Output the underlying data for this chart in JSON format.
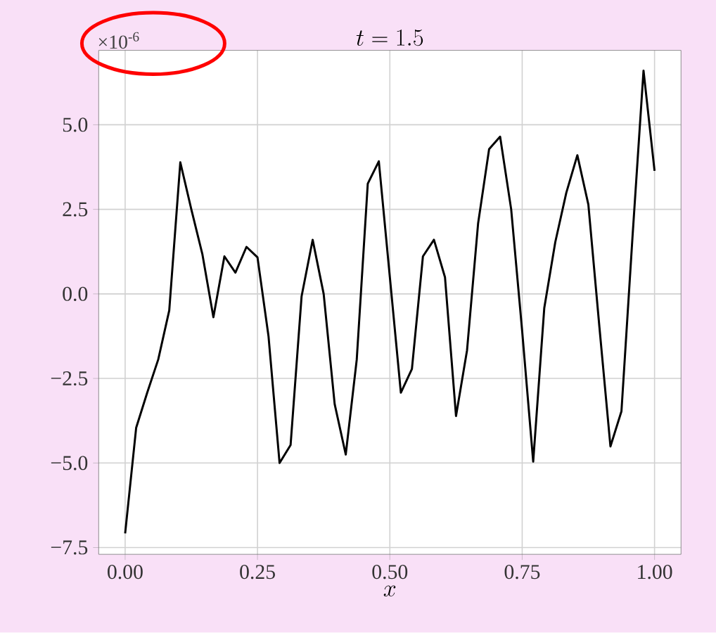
{
  "chart_data": {
    "type": "line",
    "title": "t = 1.5",
    "xlabel": "x",
    "annotations": [
      "×10$^{-6}$"
    ],
    "x": [
      0,
      0.0208,
      0.0417,
      0.0625,
      0.0833,
      0.1042,
      0.125,
      0.1458,
      0.1667,
      0.1875,
      0.2083,
      0.2292,
      0.25,
      0.2708,
      0.2917,
      0.3125,
      0.3333,
      0.3542,
      0.375,
      0.3958,
      0.4167,
      0.4375,
      0.4583,
      0.4792,
      0.5,
      0.5208,
      0.5417,
      0.5625,
      0.5833,
      0.6042,
      0.625,
      0.6458,
      0.6667,
      0.6875,
      0.7083,
      0.7292,
      0.75,
      0.7708,
      0.7917,
      0.8125,
      0.8333,
      0.8542,
      0.875,
      0.8958,
      0.9167,
      0.9375,
      0.9583,
      0.9792,
      1.0
    ],
    "series": [
      {
        "color": "#000000",
        "values": [
          -7.08,
          -3.96,
          -2.92,
          -1.94,
          -0.49,
          3.89,
          2.5,
          1.18,
          -0.69,
          1.11,
          0.63,
          1.39,
          1.08,
          -1.25,
          -5.0,
          -4.47,
          -0.07,
          1.6,
          0.0,
          -3.26,
          -4.75,
          -1.94,
          3.26,
          3.92,
          0.5,
          -2.92,
          -2.22,
          1.11,
          1.6,
          0.49,
          -3.61,
          -1.67,
          2.08,
          4.28,
          4.65,
          2.5,
          -1.11,
          -4.96,
          -0.42,
          1.53,
          2.99,
          4.1,
          2.64,
          -0.97,
          -4.51,
          -3.47,
          1.67,
          6.6,
          3.64
        ]
      }
    ],
    "xlim": [
      -0.05,
      1.05
    ],
    "ylim": [
      -7.7,
      7.2
    ],
    "xticks": [
      {
        "value": 0,
        "label": "0.00"
      },
      {
        "value": 0.25,
        "label": "0.25"
      },
      {
        "value": 0.5,
        "label": "0.50"
      },
      {
        "value": 0.75,
        "label": "0.75"
      },
      {
        "value": 1,
        "label": "1.00"
      }
    ],
    "yticks": [
      {
        "value": -7.5,
        "label": "−7.5"
      },
      {
        "value": -5,
        "label": "−5.0"
      },
      {
        "value": -2.5,
        "label": "−2.5"
      },
      {
        "value": 0,
        "label": "0.0"
      },
      {
        "value": 2.5,
        "label": "2.5"
      },
      {
        "value": 5,
        "label": "5.0"
      }
    ],
    "grid": true,
    "line_style": "solid"
  }
}
